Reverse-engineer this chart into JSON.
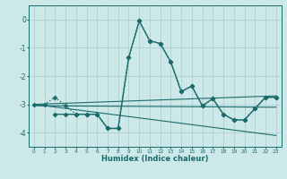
{
  "xlabel": "Humidex (Indice chaleur)",
  "xlim": [
    -0.5,
    23.5
  ],
  "ylim": [
    -4.5,
    0.5
  ],
  "yticks": [
    0,
    -1,
    -2,
    -3,
    -4
  ],
  "xticks": [
    0,
    1,
    2,
    3,
    4,
    5,
    6,
    7,
    8,
    9,
    10,
    11,
    12,
    13,
    14,
    15,
    16,
    17,
    18,
    19,
    20,
    21,
    22,
    23
  ],
  "bg_color": "#cce8e8",
  "grid_color": "#aacccc",
  "line_color": "#1a6b6b",
  "lines": [
    {
      "x": [
        0,
        1,
        2,
        3,
        4,
        5,
        6,
        7,
        8,
        9,
        10,
        11,
        12,
        13,
        14,
        15,
        16,
        17,
        18,
        19,
        20,
        21,
        22,
        23
      ],
      "y": [
        -3.0,
        -3.0,
        -2.75,
        -3.05,
        -3.35,
        -3.35,
        -3.35,
        -3.85,
        -3.85,
        -1.35,
        -0.05,
        -0.75,
        -0.85,
        -1.5,
        -2.55,
        -2.35,
        -3.05,
        -2.8,
        -3.35,
        -3.55,
        -3.55,
        -3.15,
        -2.75,
        -2.75
      ],
      "style": ":",
      "marker": "D",
      "markersize": 2.5,
      "linewidth": 1.0
    },
    {
      "x": [
        2,
        3,
        4,
        5,
        6,
        7,
        8,
        9,
        10,
        11,
        12,
        13,
        14,
        15,
        16,
        17,
        18,
        19,
        20,
        21,
        22,
        23
      ],
      "y": [
        -3.35,
        -3.35,
        -3.35,
        -3.35,
        -3.35,
        -3.85,
        -3.85,
        -1.35,
        -0.05,
        -0.75,
        -0.85,
        -1.5,
        -2.55,
        -2.35,
        -3.05,
        -2.8,
        -3.35,
        -3.55,
        -3.55,
        -3.15,
        -2.75,
        -2.75
      ],
      "style": "-",
      "marker": "D",
      "markersize": 2.5,
      "linewidth": 1.0
    },
    {
      "x": [
        0,
        23
      ],
      "y": [
        -3.0,
        -2.7
      ],
      "style": "-",
      "marker": null,
      "markersize": 0,
      "linewidth": 0.8
    },
    {
      "x": [
        0,
        23
      ],
      "y": [
        -3.05,
        -3.1
      ],
      "style": "-",
      "marker": null,
      "markersize": 0,
      "linewidth": 0.8
    },
    {
      "x": [
        0,
        23
      ],
      "y": [
        -3.0,
        -4.1
      ],
      "style": "-",
      "marker": null,
      "markersize": 0,
      "linewidth": 0.8
    }
  ]
}
